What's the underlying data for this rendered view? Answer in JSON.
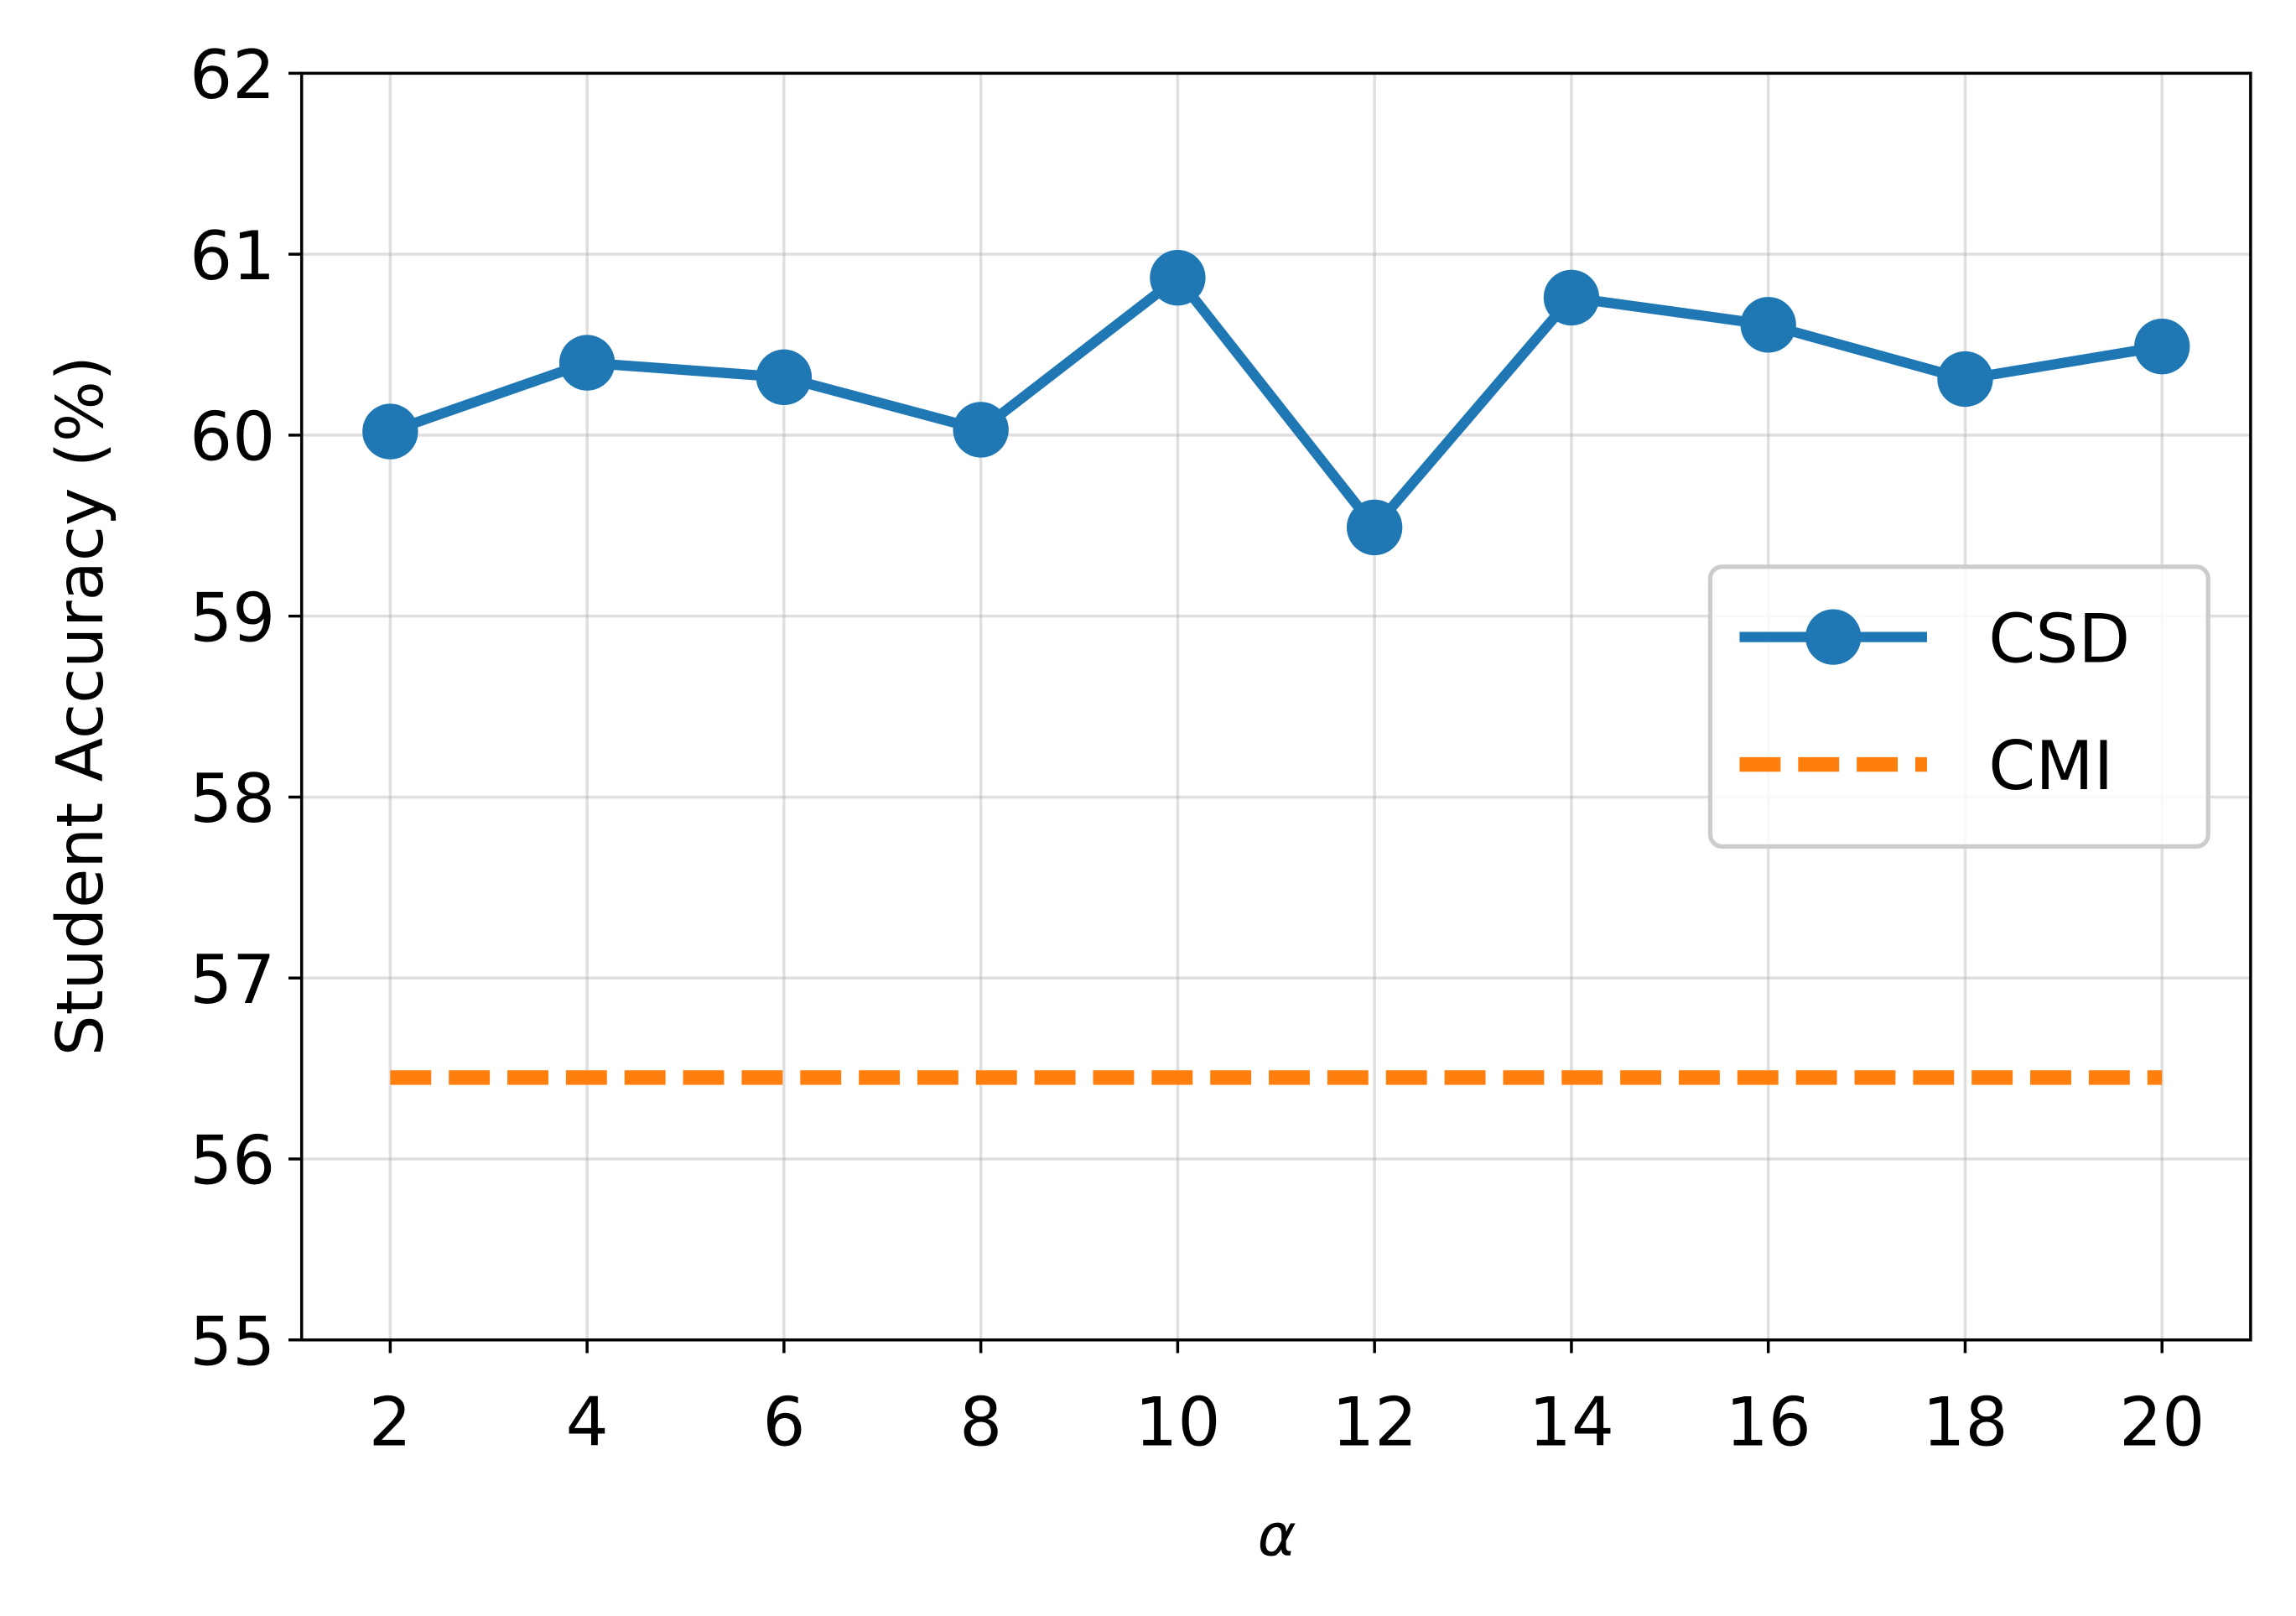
{
  "chart_data": {
    "type": "line",
    "xlabel": "α",
    "ylabel": "Student Accuracy (%)",
    "x": [
      2,
      4,
      6,
      8,
      10,
      12,
      14,
      16,
      18,
      20
    ],
    "series": [
      {
        "name": "CSD",
        "color": "#1f77b4",
        "linestyle": "solid",
        "marker": "circle",
        "values": [
          60.02,
          60.4,
          60.32,
          60.03,
          60.87,
          59.49,
          60.76,
          60.61,
          60.31,
          60.49
        ]
      },
      {
        "name": "CMI",
        "color": "#ff7f0e",
        "linestyle": "dashed",
        "x": [
          2,
          20
        ],
        "values": [
          56.45,
          56.45
        ]
      }
    ],
    "xlim": [
      1.1,
      20.9
    ],
    "ylim": [
      55,
      62
    ],
    "xticks": [
      2,
      4,
      6,
      8,
      10,
      12,
      14,
      16,
      18,
      20
    ],
    "yticks": [
      55,
      56,
      57,
      58,
      59,
      60,
      61,
      62
    ],
    "grid": true,
    "legend": "center right"
  }
}
